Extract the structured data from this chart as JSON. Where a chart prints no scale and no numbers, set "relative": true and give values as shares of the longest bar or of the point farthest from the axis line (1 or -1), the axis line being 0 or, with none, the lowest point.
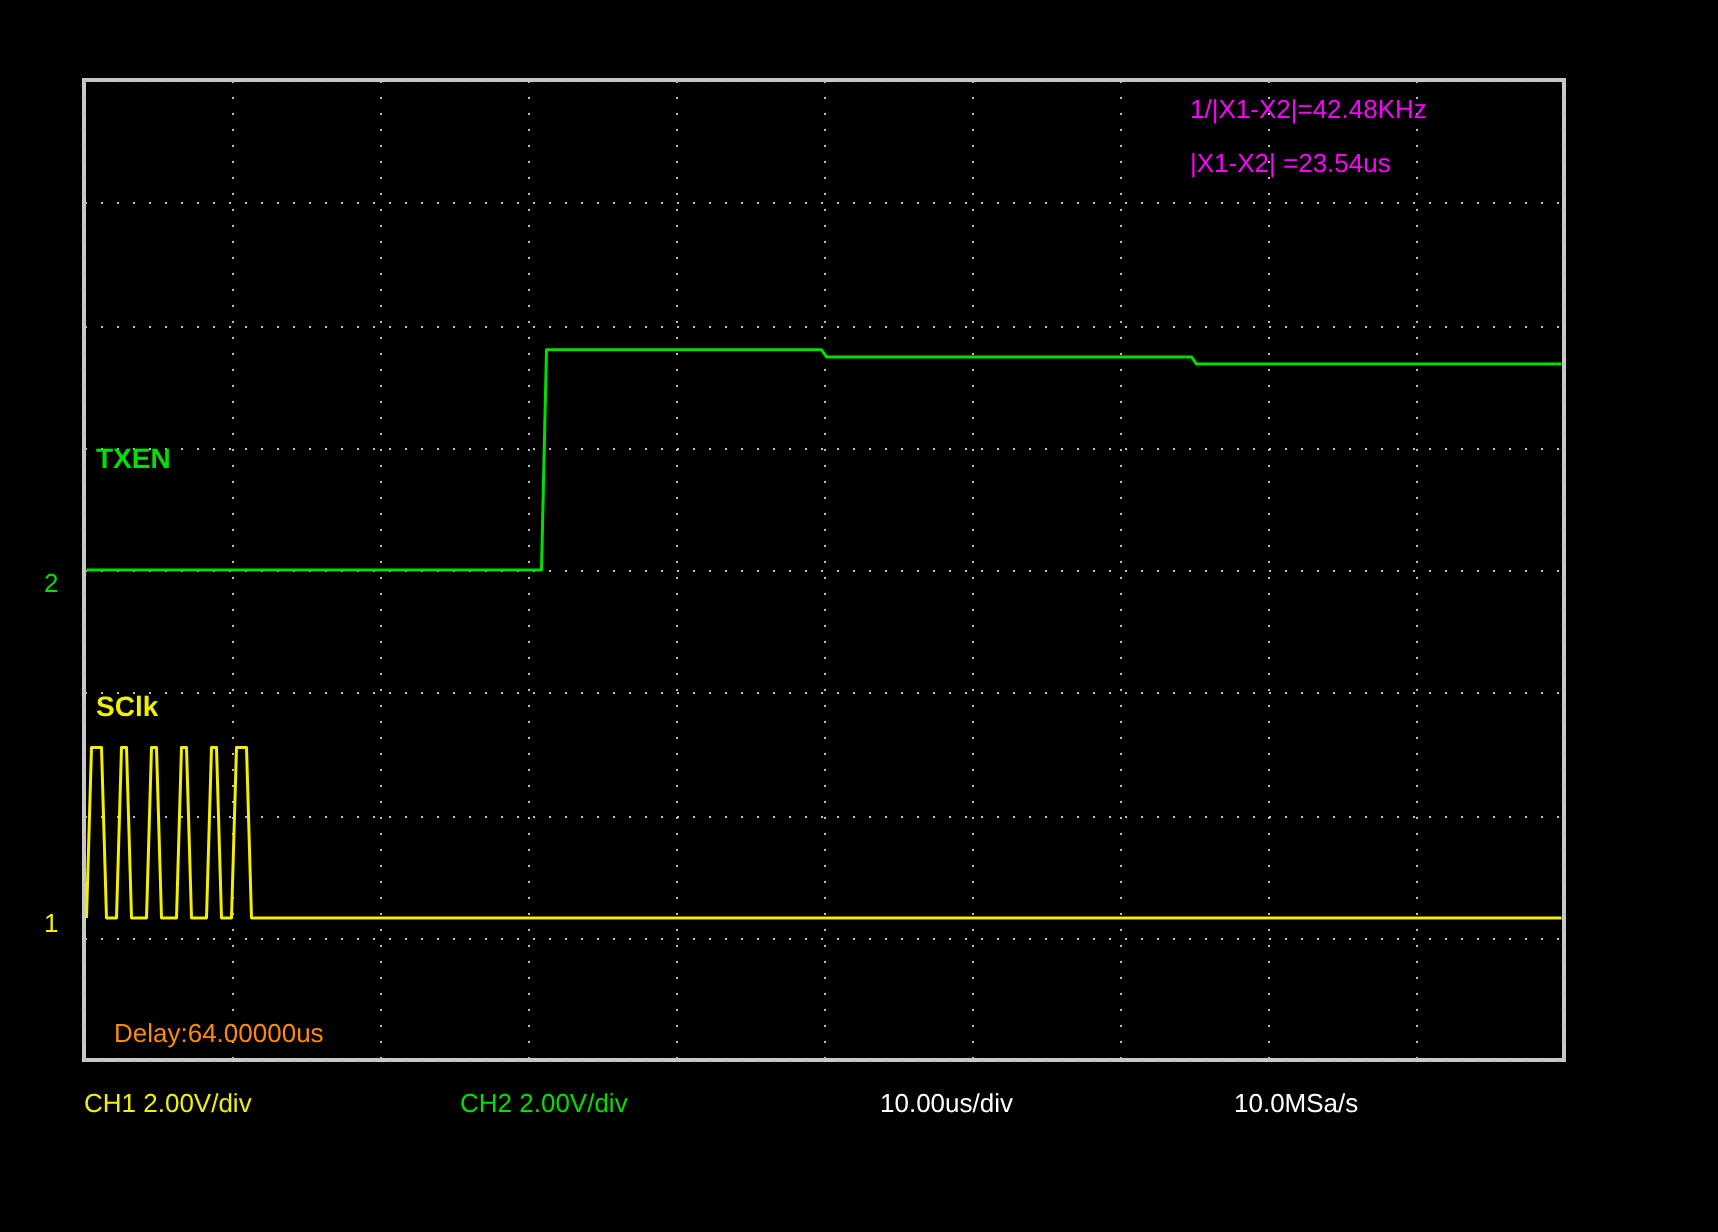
{
  "chart_data": {
    "type": "line",
    "relative": true,
    "grid": true,
    "categories": [
      null,
      null,
      null,
      null,
      null,
      null,
      null,
      null,
      null,
      null,
      null,
      null,
      null,
      null,
      null,
      null,
      null,
      null,
      null,
      null,
      null,
      null,
      null,
      null,
      null,
      null,
      null,
      null,
      null,
      null,
      null,
      null,
      null,
      null,
      null,
      null,
      null,
      null,
      null,
      null,
      null,
      null,
      null,
      null,
      null,
      null,
      null,
      null,
      null,
      null,
      null,
      null,
      null,
      null,
      null,
      null,
      null,
      null,
      null,
      null,
      null,
      null,
      null,
      null,
      null,
      null,
      null,
      null,
      null,
      null,
      null,
      null,
      null,
      null,
      null,
      null,
      null,
      null,
      null,
      null,
      null,
      null,
      null,
      null,
      null,
      null,
      null,
      null,
      null,
      null,
      null,
      null,
      null,
      null,
      null,
      null,
      null,
      null,
      null,
      null,
      null,
      null,
      null,
      null,
      null,
      null,
      null,
      null,
      null,
      null,
      null,
      null,
      null,
      null,
      null,
      null,
      null,
      null,
      null,
      null,
      null,
      null,
      null,
      null,
      null,
      null,
      null,
      null,
      null,
      null,
      null,
      null,
      null,
      null,
      null,
      null,
      null,
      null,
      null,
      null,
      null,
      null,
      null,
      null,
      null,
      null,
      null,
      null,
      null,
      null,
      null,
      null,
      null,
      null,
      null,
      null,
      null,
      null,
      null,
      null,
      null,
      null,
      null,
      null,
      null,
      null,
      null,
      null,
      null,
      null,
      null,
      null,
      null,
      null,
      null,
      null,
      null,
      null,
      null,
      null,
      null,
      null,
      null,
      null,
      null,
      null,
      null,
      null,
      null,
      null,
      null,
      null,
      null,
      null,
      null,
      null,
      null,
      null,
      null,
      null,
      null,
      null,
      null,
      null,
      null,
      null,
      null,
      null,
      null,
      null,
      null,
      null,
      null,
      null,
      null,
      null,
      null,
      null,
      null,
      null,
      null,
      null,
      null,
      null,
      null,
      null,
      null,
      null,
      null,
      null,
      null,
      null,
      null,
      null,
      null,
      null,
      null,
      null,
      null,
      null,
      null,
      null,
      null,
      null,
      null,
      null,
      null,
      null,
      null,
      null,
      null,
      null,
      null,
      null,
      null,
      null,
      null,
      null,
      null,
      null,
      null,
      null,
      null,
      null,
      null,
      null,
      null,
      null,
      null,
      null,
      null,
      null,
      null,
      null,
      null,
      null,
      null,
      null,
      null,
      null,
      null,
      null,
      null,
      null,
      null,
      null,
      null,
      null,
      null,
      null,
      null,
      null,
      null,
      null,
      null,
      null
    ],
    "series": [
      {
        "name": "TXEN",
        "color": "#00e000",
        "values": [
          0.69,
          0.69,
          0.69,
          0.69,
          0.69,
          0.69,
          0.69,
          0.69,
          0.69,
          0.69,
          0.69,
          0.69,
          0.69,
          0.69,
          0.69,
          0.69,
          0.69,
          0.69,
          0.69,
          0.69,
          0.69,
          0.69,
          0.69,
          0.69,
          0.69,
          0.69,
          0.69,
          0.69,
          0.69,
          0.69,
          0.69,
          0.69,
          0.69,
          0.69,
          0.69,
          0.69,
          0.69,
          0.69,
          0.69,
          0.69,
          0.69,
          0.69,
          0.69,
          0.69,
          0.69,
          0.69,
          0.69,
          0.69,
          0.69,
          0.69,
          0.69,
          0.69,
          0.69,
          0.69,
          0.69,
          0.69,
          0.69,
          0.69,
          0.69,
          0.69,
          0.69,
          0.69,
          0.69,
          0.69,
          0.69,
          0.69,
          0.69,
          0.69,
          0.69,
          0.69,
          0.69,
          0.69,
          0.69,
          0.69,
          0.69,
          0.69,
          0.69,
          0.69,
          0.69,
          0.69,
          0.69,
          0.69,
          0.69,
          0.69,
          0.69,
          0.69,
          0.69,
          0.69,
          0.69,
          0.69,
          0.69,
          0.69,
          1.0,
          1.0,
          1.0,
          1.0,
          1.0,
          1.0,
          1.0,
          1.0,
          1.0,
          1.0,
          1.0,
          1.0,
          1.0,
          1.0,
          1.0,
          1.0,
          1.0,
          1.0,
          1.0,
          1.0,
          1.0,
          1.0,
          1.0,
          1.0,
          1.0,
          1.0,
          1.0,
          1.0,
          1.0,
          1.0,
          1.0,
          1.0,
          1.0,
          1.0,
          1.0,
          1.0,
          1.0,
          1.0,
          1.0,
          1.0,
          1.0,
          1.0,
          1.0,
          1.0,
          1.0,
          1.0,
          1.0,
          1.0,
          1.0,
          1.0,
          1.0,
          1.0,
          1.0,
          1.0,
          1.0,
          1.0,
          0.99,
          0.99,
          0.99,
          0.99,
          0.99,
          0.99,
          0.99,
          0.99,
          0.99,
          0.99,
          0.99,
          0.99,
          0.99,
          0.99,
          0.99,
          0.99,
          0.99,
          0.99,
          0.99,
          0.99,
          0.99,
          0.99,
          0.99,
          0.99,
          0.99,
          0.99,
          0.99,
          0.99,
          0.99,
          0.99,
          0.99,
          0.99,
          0.99,
          0.99,
          0.99,
          0.99,
          0.99,
          0.99,
          0.99,
          0.99,
          0.99,
          0.99,
          0.99,
          0.99,
          0.99,
          0.99,
          0.99,
          0.99,
          0.99,
          0.99,
          0.99,
          0.99,
          0.99,
          0.99,
          0.99,
          0.99,
          0.99,
          0.99,
          0.99,
          0.99,
          0.99,
          0.99,
          0.99,
          0.99,
          0.99,
          0.99,
          0.99,
          0.99,
          0.99,
          0.99,
          0.99,
          0.99,
          0.99,
          0.99,
          0.98,
          0.98,
          0.98,
          0.98,
          0.98,
          0.98,
          0.98,
          0.98,
          0.98,
          0.98,
          0.98,
          0.98,
          0.98,
          0.98,
          0.98,
          0.98,
          0.98,
          0.98,
          0.98,
          0.98,
          0.98,
          0.98,
          0.98,
          0.98,
          0.98,
          0.98,
          0.98,
          0.98,
          0.98,
          0.98,
          0.98,
          0.98,
          0.98,
          0.98,
          0.98,
          0.98,
          0.98,
          0.98,
          0.98,
          0.98,
          0.98,
          0.98,
          0.98,
          0.98,
          0.98,
          0.98,
          0.98,
          0.98,
          0.98,
          0.98,
          0.98,
          0.98,
          0.98,
          0.98,
          0.98,
          0.98,
          0.98,
          0.98,
          0.98,
          0.98,
          0.98,
          0.98,
          0.98,
          0.98,
          0.98,
          0.98,
          0.98,
          0.98,
          0.98,
          0.98,
          0.98,
          0.98,
          0.98,
          0.98
        ]
      },
      {
        "name": "SClk",
        "color": "#f0f000",
        "values": [
          0.2,
          0.44,
          0.44,
          0.44,
          0.2,
          0.2,
          0.2,
          0.44,
          0.44,
          0.2,
          0.2,
          0.2,
          0.2,
          0.44,
          0.44,
          0.2,
          0.2,
          0.2,
          0.2,
          0.44,
          0.44,
          0.2,
          0.2,
          0.2,
          0.2,
          0.44,
          0.44,
          0.2,
          0.2,
          0.2,
          0.44,
          0.44,
          0.44,
          0.2,
          0.2,
          0.2,
          0.2,
          0.2,
          0.2,
          0.2,
          0.2,
          0.2,
          0.2,
          0.2,
          0.2,
          0.2,
          0.2,
          0.2,
          0.2,
          0.2,
          0.2,
          0.2,
          0.2,
          0.2,
          0.2,
          0.2,
          0.2,
          0.2,
          0.2,
          0.2,
          0.2,
          0.2,
          0.2,
          0.2,
          0.2,
          0.2,
          0.2,
          0.2,
          0.2,
          0.2,
          0.2,
          0.2,
          0.2,
          0.2,
          0.2,
          0.2,
          0.2,
          0.2,
          0.2,
          0.2,
          0.2,
          0.2,
          0.2,
          0.2,
          0.2,
          0.2,
          0.2,
          0.2,
          0.2,
          0.2,
          0.2,
          0.2,
          0.2,
          0.2,
          0.2,
          0.2,
          0.2,
          0.2,
          0.2,
          0.2,
          0.2,
          0.2,
          0.2,
          0.2,
          0.2,
          0.2,
          0.2,
          0.2,
          0.2,
          0.2,
          0.2,
          0.2,
          0.2,
          0.2,
          0.2,
          0.2,
          0.2,
          0.2,
          0.2,
          0.2,
          0.2,
          0.2,
          0.2,
          0.2,
          0.2,
          0.2,
          0.2,
          0.2,
          0.2,
          0.2,
          0.2,
          0.2,
          0.2,
          0.2,
          0.2,
          0.2,
          0.2,
          0.2,
          0.2,
          0.2,
          0.2,
          0.2,
          0.2,
          0.2,
          0.2,
          0.2,
          0.2,
          0.2,
          0.2,
          0.2,
          0.2,
          0.2,
          0.2,
          0.2,
          0.2,
          0.2,
          0.2,
          0.2,
          0.2,
          0.2,
          0.2,
          0.2,
          0.2,
          0.2,
          0.2,
          0.2,
          0.2,
          0.2,
          0.2,
          0.2,
          0.2,
          0.2,
          0.2,
          0.2,
          0.2,
          0.2,
          0.2,
          0.2,
          0.2,
          0.2,
          0.2,
          0.2,
          0.2,
          0.2,
          0.2,
          0.2,
          0.2,
          0.2,
          0.2,
          0.2,
          0.2,
          0.2,
          0.2,
          0.2,
          0.2,
          0.2,
          0.2,
          0.2,
          0.2,
          0.2,
          0.2,
          0.2,
          0.2,
          0.2,
          0.2,
          0.2,
          0.2,
          0.2,
          0.2,
          0.2,
          0.2,
          0.2,
          0.2,
          0.2,
          0.2,
          0.2,
          0.2,
          0.2,
          0.2,
          0.2,
          0.2,
          0.2,
          0.2,
          0.2,
          0.2,
          0.2,
          0.2,
          0.2,
          0.2,
          0.2,
          0.2,
          0.2,
          0.2,
          0.2,
          0.2,
          0.2,
          0.2,
          0.2,
          0.2,
          0.2,
          0.2,
          0.2,
          0.2,
          0.2,
          0.2,
          0.2,
          0.2,
          0.2,
          0.2,
          0.2,
          0.2,
          0.2,
          0.2,
          0.2,
          0.2,
          0.2,
          0.2,
          0.2,
          0.2,
          0.2,
          0.2,
          0.2,
          0.2,
          0.2,
          0.2,
          0.2,
          0.2,
          0.2,
          0.2,
          0.2,
          0.2,
          0.2,
          0.2,
          0.2,
          0.2,
          0.2,
          0.2,
          0.2,
          0.2,
          0.2,
          0.2,
          0.2,
          0.2,
          0.2,
          0.2,
          0.2,
          0.2,
          0.2,
          0.2,
          0.2,
          0.2,
          0.2,
          0.2,
          0.2,
          0.2,
          0.2
        ]
      }
    ],
    "annotations": [
      "1/|X1-X2|=42.48KHz",
      "|X1-X2|  =23.54us",
      "Delay:64.00000us",
      "CH1 2.00V/div",
      "CH2 2.00V/div",
      "10.00us/div",
      "10.0MSa/s",
      "1",
      "2"
    ]
  }
}
